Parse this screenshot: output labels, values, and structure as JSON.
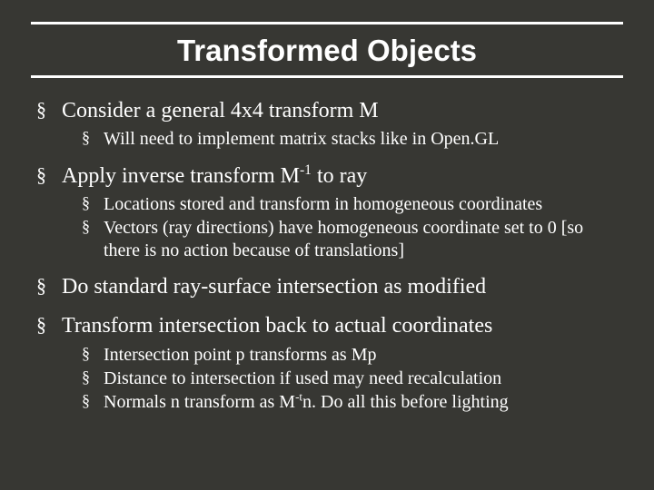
{
  "title": "Transformed Objects",
  "b1": {
    "text": "Consider a general 4x4 transform M",
    "sub": {
      "s1": "Will need to implement matrix stacks like in Open.GL"
    }
  },
  "b2": {
    "pre": "Apply inverse transform M",
    "sup": "-1",
    "post": " to ray",
    "sub": {
      "s1": "Locations stored and transform in homogeneous coordinates",
      "s2": "Vectors (ray directions) have homogeneous coordinate set to 0 [so there is no action because of translations]"
    }
  },
  "b3": {
    "text": "Do standard ray-surface intersection as modified"
  },
  "b4": {
    "text": "Transform intersection back to actual coordinates",
    "sub": {
      "s1": "Intersection point p transforms as Mp",
      "s2": "Distance to intersection if used may need recalculation",
      "s3pre": "Normals n transform as M",
      "s3sup": "-t",
      "s3post": "n.  Do all this before lighting"
    }
  }
}
